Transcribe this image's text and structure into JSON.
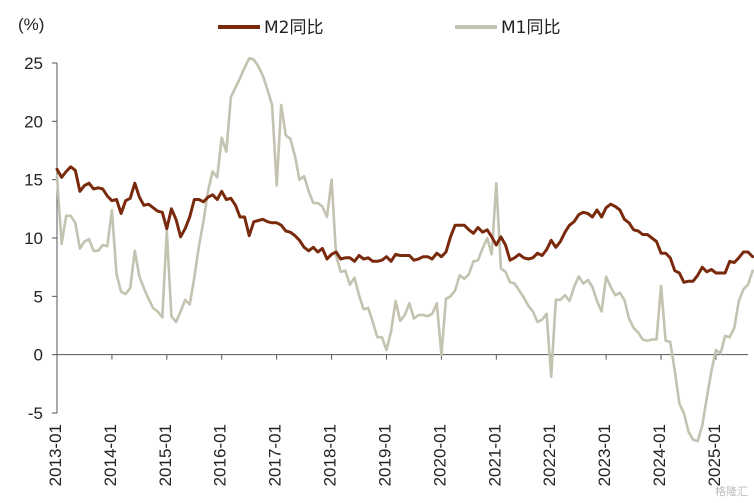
{
  "chart_data": {
    "type": "line",
    "unit_label": "(%)",
    "ylim": [
      -5,
      25
    ],
    "yticks": [
      -5,
      0,
      5,
      10,
      15,
      20,
      25
    ],
    "x_tick_labels": [
      "2013-01",
      "2014-01",
      "2015-01",
      "2016-01",
      "2017-01",
      "2018-01",
      "2019-01",
      "2020-01",
      "2021-01",
      "2022-01",
      "2023-01",
      "2024-01",
      "2025-01"
    ],
    "x_start": "2013-01",
    "x_end": "2025-08",
    "legend_position": "top",
    "grid": false,
    "series": [
      {
        "name": "M2同比",
        "color": "#7a2a0c",
        "values": [
          15.9,
          15.2,
          15.7,
          16.1,
          15.8,
          14.0,
          14.5,
          14.7,
          14.2,
          14.3,
          14.2,
          13.6,
          13.2,
          13.3,
          12.1,
          13.2,
          13.4,
          14.7,
          13.5,
          12.8,
          12.9,
          12.6,
          12.3,
          12.2,
          10.8,
          12.5,
          11.6,
          10.1,
          10.8,
          11.8,
          13.3,
          13.3,
          13.1,
          13.5,
          13.7,
          13.3,
          14.0,
          13.3,
          13.4,
          12.8,
          11.8,
          11.8,
          10.2,
          11.4,
          11.5,
          11.6,
          11.4,
          11.3,
          11.3,
          11.1,
          10.6,
          10.5,
          10.2,
          9.8,
          9.2,
          8.9,
          9.2,
          8.8,
          9.1,
          8.2,
          8.6,
          8.8,
          8.2,
          8.3,
          8.3,
          8.0,
          8.5,
          8.2,
          8.3,
          8.0,
          8.0,
          8.1,
          8.4,
          8.0,
          8.6,
          8.5,
          8.5,
          8.5,
          8.1,
          8.2,
          8.4,
          8.4,
          8.2,
          8.7,
          8.4,
          8.8,
          10.1,
          11.1,
          11.1,
          11.1,
          10.7,
          10.4,
          10.9,
          10.5,
          10.7,
          10.1,
          9.4,
          10.1,
          9.4,
          8.1,
          8.3,
          8.6,
          8.3,
          8.2,
          8.3,
          8.7,
          8.5,
          9.0,
          9.8,
          9.2,
          9.7,
          10.5,
          11.1,
          11.4,
          12.0,
          12.2,
          12.1,
          11.8,
          12.4,
          11.8,
          12.6,
          12.9,
          12.7,
          12.4,
          11.6,
          11.3,
          10.7,
          10.6,
          10.3,
          10.3,
          10.0,
          9.7,
          8.7,
          8.7,
          8.3,
          7.2,
          7.0,
          6.2,
          6.3,
          6.3,
          6.8,
          7.5,
          7.1,
          7.3,
          7.0,
          7.0,
          7.0,
          8.0,
          7.9,
          8.3,
          8.8,
          8.8,
          8.4
        ]
      },
      {
        "name": "M1同比",
        "color": "#c4c2b0",
        "values": [
          15.3,
          9.5,
          11.9,
          11.9,
          11.3,
          9.1,
          9.7,
          9.9,
          8.9,
          8.9,
          9.4,
          9.3,
          12.4,
          6.9,
          5.4,
          5.2,
          5.7,
          8.9,
          6.7,
          5.7,
          4.8,
          4.0,
          3.7,
          3.2,
          10.6,
          3.3,
          2.8,
          3.7,
          4.7,
          4.3,
          6.6,
          9.3,
          11.4,
          14.0,
          15.7,
          15.2,
          18.6,
          17.4,
          22.1,
          22.9,
          23.7,
          24.6,
          25.4,
          25.3,
          24.7,
          23.9,
          22.7,
          21.4,
          14.5,
          21.4,
          18.8,
          18.5,
          17.0,
          15.0,
          15.3,
          14.0,
          13.0,
          13.0,
          12.7,
          11.8,
          15.0,
          8.5,
          7.1,
          7.2,
          6.0,
          6.6,
          5.1,
          3.9,
          4.0,
          2.8,
          1.5,
          1.5,
          0.4,
          2.0,
          4.6,
          2.9,
          3.4,
          4.4,
          3.1,
          3.4,
          3.4,
          3.3,
          3.5,
          4.4,
          0.0,
          4.8,
          5.0,
          5.5,
          6.8,
          6.5,
          6.9,
          8.0,
          8.1,
          9.1,
          10.0,
          8.6,
          14.7,
          7.4,
          7.1,
          6.2,
          6.1,
          5.5,
          4.9,
          4.2,
          3.7,
          2.8,
          3.0,
          3.5,
          -1.9,
          4.7,
          4.7,
          5.1,
          4.6,
          5.8,
          6.7,
          6.1,
          6.4,
          5.8,
          4.6,
          3.7,
          6.7,
          5.8,
          5.1,
          5.3,
          4.7,
          3.1,
          2.3,
          1.9,
          1.3,
          1.2,
          1.3,
          1.3,
          5.9,
          1.2,
          1.1,
          -1.4,
          -4.2,
          -5.0,
          -6.6,
          -7.3,
          -7.4,
          -6.1,
          -3.7,
          -1.4,
          0.4,
          0.1,
          1.6,
          1.5,
          2.3,
          4.6,
          5.6,
          6.0,
          7.2
        ]
      }
    ]
  },
  "watermark_text": "格隆汇"
}
